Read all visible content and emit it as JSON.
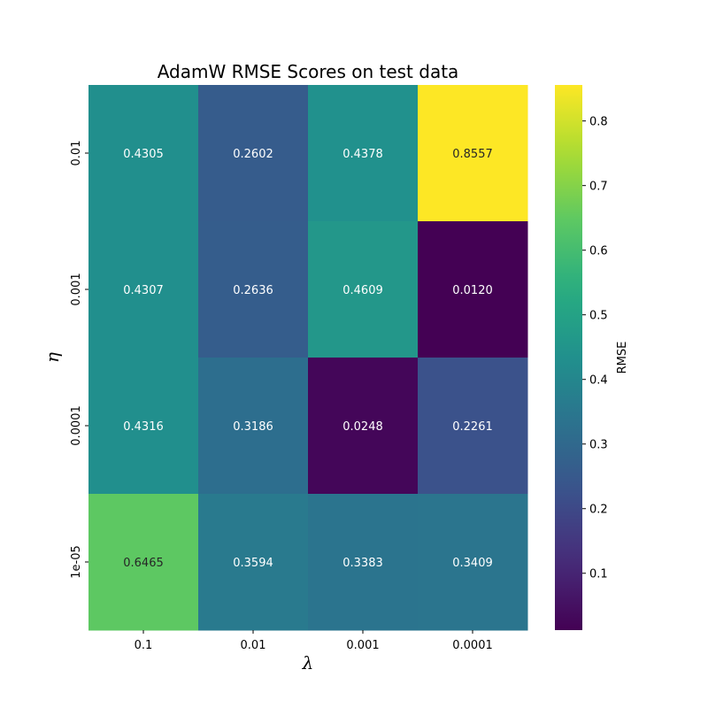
{
  "chart_data": {
    "type": "heatmap",
    "title": "AdamW RMSE Scores on test data",
    "xlabel": "λ",
    "ylabel": "η",
    "x_categories": [
      "0.1",
      "0.01",
      "0.001",
      "0.0001"
    ],
    "y_categories": [
      "0.01",
      "0.001",
      "0.0001",
      "1e-05"
    ],
    "values": [
      [
        0.4305,
        0.2602,
        0.4378,
        0.8557
      ],
      [
        0.4307,
        0.2636,
        0.4609,
        0.012
      ],
      [
        0.4316,
        0.3186,
        0.0248,
        0.2261
      ],
      [
        0.6465,
        0.3594,
        0.3383,
        0.3409
      ]
    ],
    "value_labels": [
      [
        "0.4305",
        "0.2602",
        "0.4378",
        "0.8557"
      ],
      [
        "0.4307",
        "0.2636",
        "0.4609",
        "0.0120"
      ],
      [
        "0.4316",
        "0.3186",
        "0.0248",
        "0.2261"
      ],
      [
        "0.6465",
        "0.3594",
        "0.3383",
        "0.3409"
      ]
    ],
    "colormap": "viridis",
    "colorbar": {
      "label": "RMSE",
      "range": [
        0.012,
        0.8557
      ],
      "ticks": [
        0.1,
        0.2,
        0.3,
        0.4,
        0.5,
        0.6,
        0.7,
        0.8
      ],
      "tick_labels": [
        "0.1",
        "0.2",
        "0.3",
        "0.4",
        "0.5",
        "0.6",
        "0.7",
        "0.8"
      ]
    }
  }
}
